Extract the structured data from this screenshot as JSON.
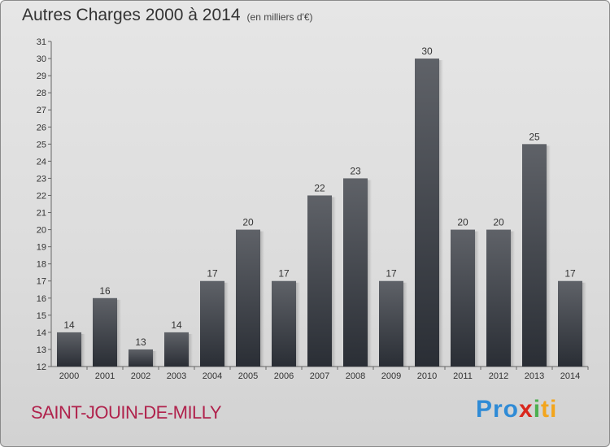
{
  "header": {
    "title": "Autres Charges 2000 à 2014",
    "subtitle": "(en milliers d'€)"
  },
  "footer": {
    "commune": "SAINT-JOUIN-DE-MILLY",
    "brand": [
      "Pro",
      "x",
      "i",
      "ti"
    ]
  },
  "colors": {
    "bar_top": "#5f6268",
    "bar_bottom": "#2a2e35",
    "commune": "#b0224c"
  },
  "chart_data": {
    "type": "bar",
    "categories": [
      "2000",
      "2001",
      "2002",
      "2003",
      "2004",
      "2005",
      "2006",
      "2007",
      "2008",
      "2009",
      "2010",
      "2011",
      "2012",
      "2013",
      "2014"
    ],
    "values": [
      14,
      16,
      13,
      14,
      17,
      20,
      17,
      22,
      23,
      17,
      30,
      20,
      20,
      25,
      17
    ],
    "ylim": [
      12,
      31
    ],
    "yticks": [
      12,
      13,
      14,
      15,
      16,
      17,
      18,
      19,
      20,
      21,
      22,
      23,
      24,
      25,
      26,
      27,
      28,
      29,
      30,
      31
    ],
    "grid": false,
    "title": "Autres Charges 2000 à 2014",
    "xlabel": "",
    "ylabel": ""
  }
}
